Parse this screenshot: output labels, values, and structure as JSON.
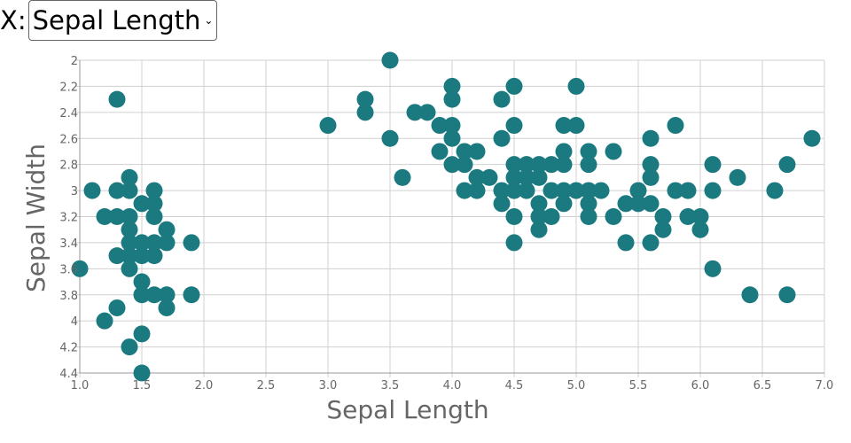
{
  "x_selector": {
    "label": "X:",
    "selected": "Sepal Length"
  },
  "chart_data": {
    "type": "scatter",
    "xlabel": "Sepal Length",
    "ylabel": "Sepal Width",
    "xlim": [
      1.0,
      7.0
    ],
    "ylim": [
      2,
      4.4
    ],
    "y_inverted": true,
    "grid": true,
    "color": "#1a7a80",
    "x_ticks": [
      "1.0",
      "1.5",
      "2.0",
      "2.5",
      "3.0",
      "3.5",
      "4.0",
      "4.5",
      "5.0",
      "5.5",
      "6.0",
      "6.5",
      "7.0"
    ],
    "y_ticks": [
      "2",
      "2.2",
      "2.4",
      "2.6",
      "2.8",
      "3",
      "3.2",
      "3.4",
      "3.6",
      "3.8",
      "4",
      "4.2",
      "4.4"
    ],
    "points": [
      [
        1.3,
        2.3
      ],
      [
        1.1,
        3.0
      ],
      [
        1.3,
        3.0
      ],
      [
        1.4,
        3.0
      ],
      [
        1.6,
        3.0
      ],
      [
        1.4,
        2.9
      ],
      [
        1.2,
        3.2
      ],
      [
        1.3,
        3.2
      ],
      [
        1.4,
        3.2
      ],
      [
        1.6,
        3.2
      ],
      [
        1.5,
        3.1
      ],
      [
        1.6,
        3.1
      ],
      [
        1.4,
        3.3
      ],
      [
        1.7,
        3.3
      ],
      [
        1.4,
        3.4
      ],
      [
        1.5,
        3.4
      ],
      [
        1.6,
        3.4
      ],
      [
        1.7,
        3.4
      ],
      [
        1.9,
        3.4
      ],
      [
        1.3,
        3.5
      ],
      [
        1.4,
        3.5
      ],
      [
        1.5,
        3.5
      ],
      [
        1.6,
        3.5
      ],
      [
        1.4,
        3.6
      ],
      [
        1.0,
        3.6
      ],
      [
        1.5,
        3.7
      ],
      [
        1.5,
        3.8
      ],
      [
        1.6,
        3.8
      ],
      [
        1.7,
        3.8
      ],
      [
        1.9,
        3.8
      ],
      [
        1.3,
        3.9
      ],
      [
        1.7,
        3.9
      ],
      [
        1.2,
        4.0
      ],
      [
        1.5,
        4.1
      ],
      [
        1.4,
        4.2
      ],
      [
        1.5,
        4.4
      ],
      [
        3.5,
        2.0
      ],
      [
        3.3,
        2.3
      ],
      [
        3.3,
        2.4
      ],
      [
        3.0,
        2.5
      ],
      [
        3.5,
        2.6
      ],
      [
        3.6,
        2.9
      ],
      [
        3.7,
        2.4
      ],
      [
        3.8,
        2.4
      ],
      [
        3.9,
        2.5
      ],
      [
        3.9,
        2.7
      ],
      [
        4.0,
        2.2
      ],
      [
        4.0,
        2.3
      ],
      [
        4.0,
        2.5
      ],
      [
        4.0,
        2.6
      ],
      [
        4.0,
        2.8
      ],
      [
        4.1,
        2.7
      ],
      [
        4.1,
        2.8
      ],
      [
        4.1,
        3.0
      ],
      [
        4.2,
        2.7
      ],
      [
        4.2,
        2.9
      ],
      [
        4.2,
        3.0
      ],
      [
        4.3,
        2.9
      ],
      [
        4.4,
        2.3
      ],
      [
        4.4,
        2.6
      ],
      [
        4.4,
        3.0
      ],
      [
        4.4,
        3.1
      ],
      [
        4.5,
        2.2
      ],
      [
        4.5,
        2.5
      ],
      [
        4.5,
        2.8
      ],
      [
        4.5,
        2.9
      ],
      [
        4.5,
        3.0
      ],
      [
        4.5,
        3.2
      ],
      [
        4.5,
        3.4
      ],
      [
        4.6,
        2.8
      ],
      [
        4.6,
        2.9
      ],
      [
        4.6,
        3.0
      ],
      [
        4.7,
        2.8
      ],
      [
        4.7,
        2.9
      ],
      [
        4.7,
        3.1
      ],
      [
        4.7,
        3.2
      ],
      [
        4.7,
        3.3
      ],
      [
        4.8,
        2.8
      ],
      [
        4.8,
        3.0
      ],
      [
        4.8,
        3.2
      ],
      [
        4.9,
        2.5
      ],
      [
        4.9,
        2.7
      ],
      [
        4.9,
        2.8
      ],
      [
        4.9,
        3.0
      ],
      [
        4.9,
        3.1
      ],
      [
        5.0,
        2.2
      ],
      [
        5.0,
        2.5
      ],
      [
        5.0,
        3.0
      ],
      [
        5.1,
        2.7
      ],
      [
        5.1,
        2.8
      ],
      [
        5.1,
        3.0
      ],
      [
        5.1,
        3.1
      ],
      [
        5.1,
        3.2
      ],
      [
        5.2,
        3.0
      ],
      [
        5.3,
        2.7
      ],
      [
        5.3,
        3.2
      ],
      [
        5.4,
        3.1
      ],
      [
        5.4,
        3.4
      ],
      [
        5.5,
        3.0
      ],
      [
        5.5,
        3.1
      ],
      [
        5.6,
        2.6
      ],
      [
        5.6,
        2.8
      ],
      [
        5.6,
        2.9
      ],
      [
        5.6,
        3.1
      ],
      [
        5.6,
        3.4
      ],
      [
        5.7,
        3.2
      ],
      [
        5.7,
        3.3
      ],
      [
        5.8,
        2.5
      ],
      [
        5.8,
        3.0
      ],
      [
        5.9,
        3.0
      ],
      [
        5.9,
        3.2
      ],
      [
        6.0,
        3.2
      ],
      [
        6.0,
        3.3
      ],
      [
        6.1,
        2.8
      ],
      [
        6.1,
        3.0
      ],
      [
        6.1,
        3.6
      ],
      [
        6.3,
        2.9
      ],
      [
        6.4,
        3.8
      ],
      [
        6.6,
        3.0
      ],
      [
        6.7,
        2.8
      ],
      [
        6.7,
        3.8
      ],
      [
        6.9,
        2.6
      ]
    ]
  }
}
